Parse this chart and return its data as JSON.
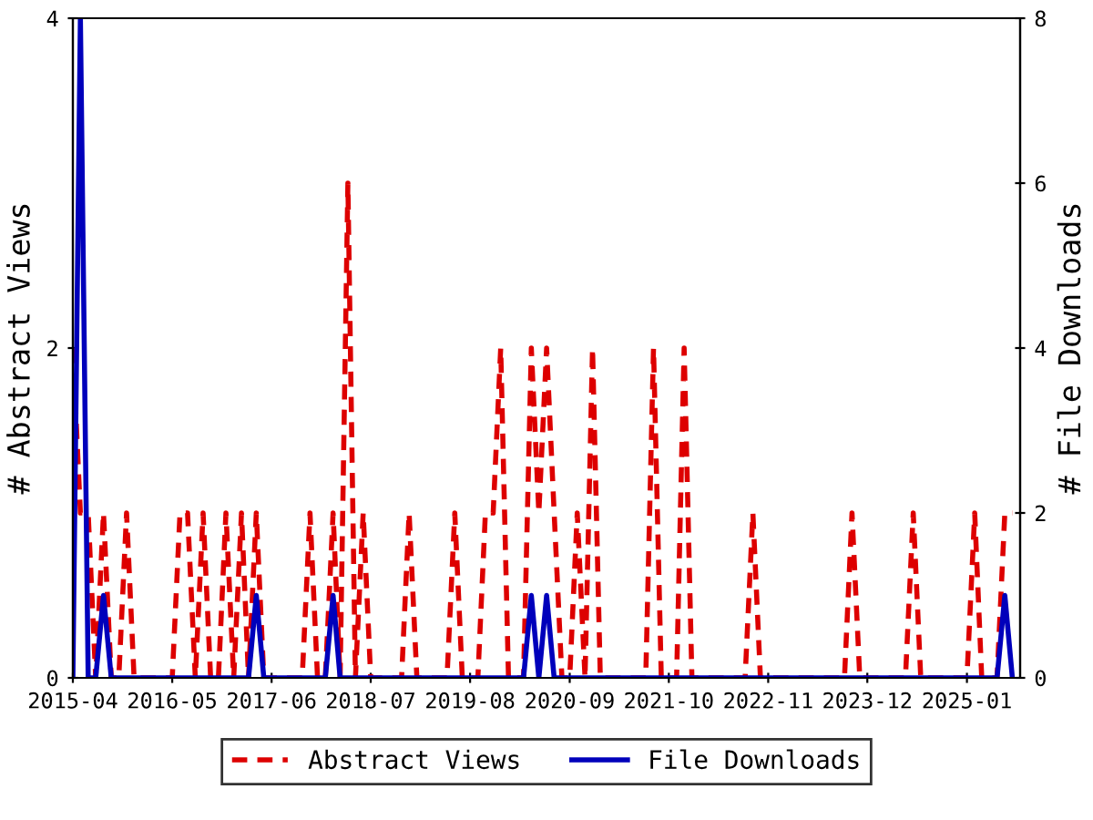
{
  "chart_data": {
    "type": "line",
    "xlabel": null,
    "ylabel": "# Abstract Views",
    "y2label": "# File Downloads",
    "x": [
      "2015-04",
      "2015-05",
      "2015-06",
      "2015-07",
      "2015-08",
      "2015-09",
      "2015-10",
      "2015-11",
      "2015-12",
      "2016-01",
      "2016-02",
      "2016-03",
      "2016-04",
      "2016-05",
      "2016-06",
      "2016-07",
      "2016-08",
      "2016-09",
      "2016-10",
      "2016-11",
      "2016-12",
      "2017-01",
      "2017-02",
      "2017-03",
      "2017-04",
      "2017-05",
      "2017-06",
      "2017-07",
      "2017-08",
      "2017-09",
      "2017-10",
      "2017-11",
      "2017-12",
      "2018-01",
      "2018-02",
      "2018-03",
      "2018-04",
      "2018-05",
      "2018-06",
      "2018-07",
      "2018-08",
      "2018-09",
      "2018-10",
      "2018-11",
      "2018-12",
      "2019-01",
      "2019-02",
      "2019-03",
      "2019-04",
      "2019-05",
      "2019-06",
      "2019-07",
      "2019-08",
      "2019-09",
      "2019-10",
      "2019-11",
      "2019-12",
      "2020-01",
      "2020-02",
      "2020-03",
      "2020-04",
      "2020-05",
      "2020-06",
      "2020-07",
      "2020-08",
      "2020-09",
      "2020-10",
      "2020-11",
      "2020-12",
      "2021-01",
      "2021-02",
      "2021-03",
      "2021-04",
      "2021-05",
      "2021-06",
      "2021-07",
      "2021-08",
      "2021-09",
      "2021-10",
      "2021-11",
      "2021-12",
      "2022-01",
      "2022-02",
      "2022-03",
      "2022-04",
      "2022-05",
      "2022-06",
      "2022-07",
      "2022-08",
      "2022-09",
      "2022-10",
      "2022-11",
      "2022-12",
      "2023-01",
      "2023-02",
      "2023-03",
      "2023-04",
      "2023-05",
      "2023-06",
      "2023-07",
      "2023-08",
      "2023-09",
      "2023-10",
      "2023-11",
      "2023-12",
      "2024-01",
      "2024-02",
      "2024-03",
      "2024-04",
      "2024-05",
      "2024-06",
      "2024-07",
      "2024-08",
      "2024-09",
      "2024-10",
      "2024-11",
      "2024-12",
      "2025-01",
      "2025-02",
      "2025-03",
      "2025-04",
      "2025-05",
      "2025-06",
      "2025-07"
    ],
    "series": [
      {
        "name": "Abstract Views",
        "color": "#dd0000",
        "line_style": "dashed",
        "values": [
          2,
          1,
          1,
          0,
          1,
          0,
          0,
          1,
          0,
          0,
          0,
          0,
          0,
          0,
          1,
          1,
          0,
          1,
          0,
          0,
          1,
          0,
          1,
          0,
          1,
          0,
          0,
          0,
          0,
          0,
          0,
          1,
          0,
          0,
          1,
          0,
          3,
          0,
          1,
          0,
          0,
          0,
          0,
          0,
          1,
          0,
          0,
          0,
          0,
          0,
          1,
          0,
          0,
          0,
          1,
          1,
          2,
          0,
          0,
          0,
          2,
          1,
          2,
          1,
          0,
          0,
          1,
          0,
          2,
          0,
          0,
          0,
          0,
          0,
          0,
          0,
          2,
          0,
          0,
          0,
          2,
          0,
          0,
          0,
          0,
          0,
          0,
          0,
          0,
          1,
          0,
          0,
          0,
          0,
          0,
          0,
          0,
          0,
          0,
          0,
          0,
          0,
          1,
          0,
          0,
          0,
          0,
          0,
          0,
          0,
          1,
          0,
          0,
          0,
          0,
          0,
          0,
          0,
          1,
          0,
          0,
          0,
          1,
          1
        ]
      },
      {
        "name": "File Downloads",
        "color": "#0000bb",
        "line_style": "solid",
        "axis": "y2",
        "values": [
          0,
          8,
          0,
          0,
          1,
          0,
          0,
          0,
          0,
          0,
          0,
          0,
          0,
          0,
          0,
          0,
          0,
          0,
          0,
          0,
          0,
          0,
          0,
          0,
          1,
          0,
          0,
          0,
          0,
          0,
          0,
          0,
          0,
          0,
          1,
          0,
          0,
          0,
          0,
          0,
          0,
          0,
          0,
          0,
          0,
          0,
          0,
          0,
          0,
          0,
          0,
          0,
          0,
          0,
          0,
          0,
          0,
          0,
          0,
          0,
          1,
          0,
          1,
          0,
          0,
          0,
          0,
          0,
          0,
          0,
          0,
          0,
          0,
          0,
          0,
          0,
          0,
          0,
          0,
          0,
          0,
          0,
          0,
          0,
          0,
          0,
          0,
          0,
          0,
          0,
          0,
          0,
          0,
          0,
          0,
          0,
          0,
          0,
          0,
          0,
          0,
          0,
          0,
          0,
          0,
          0,
          0,
          0,
          0,
          0,
          0,
          0,
          0,
          0,
          0,
          0,
          0,
          0,
          0,
          0,
          0,
          0,
          1,
          0
        ]
      }
    ],
    "xlim": [
      "2015-04",
      "2025-08"
    ],
    "xticks": [
      "2015-04",
      "2016-05",
      "2017-06",
      "2018-07",
      "2019-08",
      "2020-09",
      "2021-10",
      "2022-11",
      "2023-12",
      "2025-01"
    ],
    "ylim": [
      0,
      4
    ],
    "yticks": [
      0,
      2,
      4
    ],
    "y2lim": [
      0,
      8
    ],
    "y2ticks": [
      0,
      2,
      4,
      6,
      8
    ],
    "grid": false,
    "legend": "bottom",
    "marker": "none"
  }
}
